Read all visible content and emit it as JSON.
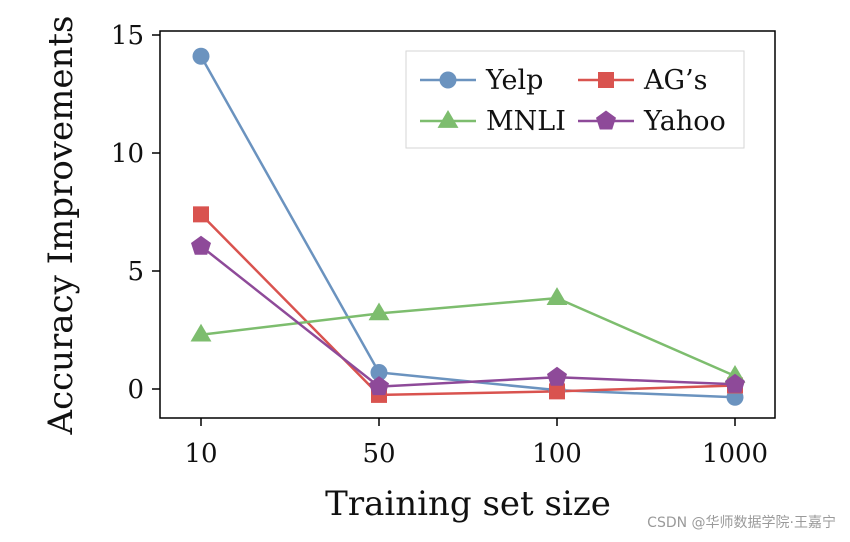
{
  "chart_data": {
    "type": "line",
    "xlabel": "Training set size",
    "ylabel": "Accuracy Improvements",
    "categories": [
      "10",
      "50",
      "100",
      "1000"
    ],
    "yticks": [
      0,
      5,
      10,
      15
    ],
    "ylim": [
      -1.2,
      15.5
    ],
    "grid": false,
    "legend_position": "top-right",
    "series": [
      {
        "name": "Yelp",
        "marker": "circle",
        "color": "#6b93bf",
        "values": [
          14.1,
          0.7,
          -0.05,
          -0.35
        ]
      },
      {
        "name": "AG’s",
        "marker": "square",
        "color": "#d9534f",
        "values": [
          7.4,
          -0.25,
          -0.1,
          0.15
        ]
      },
      {
        "name": "MNLI",
        "marker": "triangle",
        "color": "#7dbd6e",
        "values": [
          2.3,
          3.2,
          3.85,
          0.55
        ]
      },
      {
        "name": "Yahoo",
        "marker": "pentagon",
        "color": "#8e4a99",
        "values": [
          6.05,
          0.1,
          0.5,
          0.2
        ]
      }
    ]
  },
  "watermark": "CSDN @华师数据学院·王嘉宁"
}
